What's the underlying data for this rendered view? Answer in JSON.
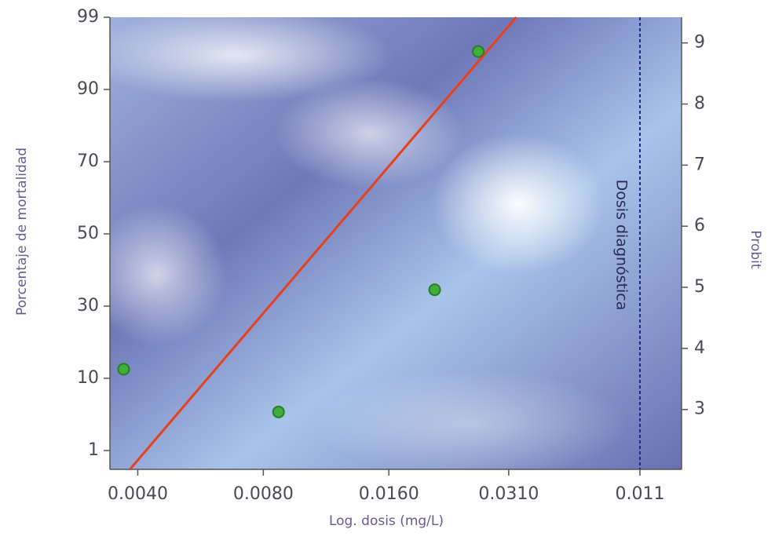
{
  "chart_data": {
    "type": "scatter",
    "x_label": "Log. dosis (mg/L)",
    "y_label": "Porcentaje de mortalidad",
    "y2_label": "Probit",
    "y_labels": [
      "99",
      "90",
      "70",
      "50",
      "30",
      "10",
      "1"
    ],
    "xscale": "log",
    "xlim": [
      0.00343,
      0.0805
    ],
    "xticks": [
      {
        "value": 0.004,
        "label": "0.0040"
      },
      {
        "value": 0.008,
        "label": "0.0080"
      },
      {
        "value": 0.016,
        "label": "0.0160"
      },
      {
        "value": 0.031,
        "label": "0.0310"
      }
    ],
    "y2lim": [
      2.02,
      9.42
    ],
    "y2ticks": [
      3,
      4,
      5,
      6,
      7,
      8,
      9
    ],
    "series": [
      {
        "type": "scatter",
        "axis": "y2",
        "color": "#3fae3a",
        "x": [
          0.0037,
          0.0087,
          0.0206,
          0.0262
        ],
        "values": [
          3.66,
          2.96,
          4.96,
          8.86
        ]
      },
      {
        "type": "line",
        "axis": "y2",
        "color": "#e8401c",
        "x": [
          0.00383,
          0.0323
        ],
        "values": [
          2.02,
          9.42
        ]
      }
    ],
    "diagnostic": {
      "label": "Dosis diagnóstica",
      "tick_label": "0.011",
      "color": "#1a2a8a"
    }
  }
}
